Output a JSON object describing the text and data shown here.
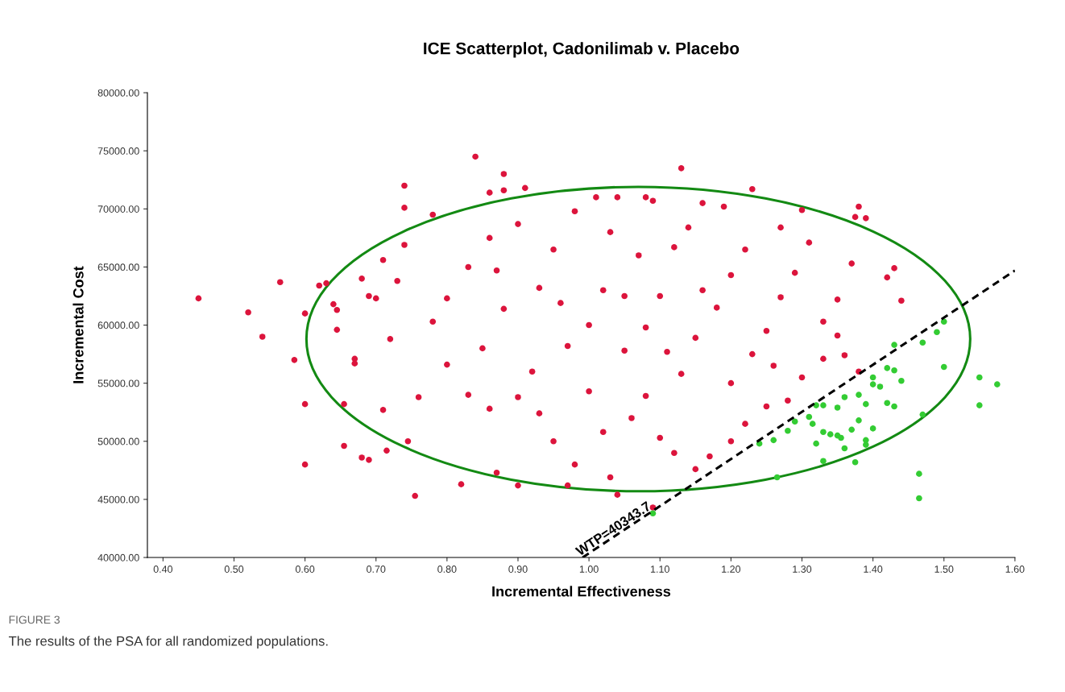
{
  "chart_data": {
    "type": "scatter",
    "title": "ICE Scatterplot, Cadonilimab v. Placebo",
    "xlabel": "Incremental Effectiveness",
    "ylabel": "Incremental Cost",
    "xlim": [
      0.378,
      1.6
    ],
    "ylim": [
      40000,
      80000
    ],
    "xticks": [
      {
        "value": 0.4,
        "label": "0.40"
      },
      {
        "value": 0.5,
        "label": "0.50"
      },
      {
        "value": 0.6,
        "label": "0.60"
      },
      {
        "value": 0.7,
        "label": "0.70"
      },
      {
        "value": 0.8,
        "label": "0.80"
      },
      {
        "value": 0.9,
        "label": "0.90"
      },
      {
        "value": 1.0,
        "label": "1.00"
      },
      {
        "value": 1.1,
        "label": "1.10"
      },
      {
        "value": 1.2,
        "label": "1.20"
      },
      {
        "value": 1.3,
        "label": "1.30"
      },
      {
        "value": 1.4,
        "label": "1.40"
      },
      {
        "value": 1.5,
        "label": "1.50"
      },
      {
        "value": 1.6,
        "label": "1.60"
      }
    ],
    "yticks": [
      {
        "value": 40000,
        "label": "40000.00"
      },
      {
        "value": 45000,
        "label": "45000.00"
      },
      {
        "value": 50000,
        "label": "50000.00"
      },
      {
        "value": 55000,
        "label": "55000.00"
      },
      {
        "value": 60000,
        "label": "60000.00"
      },
      {
        "value": 65000,
        "label": "65000.00"
      },
      {
        "value": 70000,
        "label": "70000.00"
      },
      {
        "value": 75000,
        "label": "75000.00"
      },
      {
        "value": 80000,
        "label": "80000.00"
      }
    ],
    "grid": false,
    "marker": "circle",
    "series": [
      {
        "color": "#dc143c",
        "x": [
          0.45,
          0.52,
          0.54,
          0.565,
          0.585,
          0.6,
          0.6,
          0.6,
          0.62,
          0.63,
          0.64,
          0.645,
          0.645,
          0.655,
          0.655,
          0.67,
          0.67,
          0.68,
          0.68,
          0.69,
          0.69,
          0.7,
          0.71,
          0.71,
          0.715,
          0.72,
          0.73,
          0.74,
          0.74,
          0.74,
          0.745,
          0.755,
          0.76,
          0.78,
          0.82,
          0.84,
          0.86,
          0.88,
          0.88,
          0.91,
          0.98,
          1.01,
          1.04,
          1.08,
          1.09,
          1.13,
          1.16,
          1.19,
          1.23,
          1.3,
          1.375,
          1.38,
          1.39,
          1.42,
          1.43,
          1.44,
          1.04,
          1.09,
          0.97,
          0.9,
          0.87,
          1.03,
          1.35,
          1.36,
          1.38,
          1.33,
          1.3,
          1.28,
          1.25,
          1.22,
          1.2,
          1.17,
          1.15,
          1.12,
          1.1,
          1.06,
          1.02,
          0.98,
          0.95,
          0.93,
          0.9,
          0.86,
          0.83,
          0.8,
          0.78,
          0.8,
          0.83,
          0.86,
          0.9,
          0.93,
          0.95,
          1.0,
          1.02,
          1.05,
          1.08,
          1.1,
          1.13,
          1.15,
          1.18,
          1.2,
          1.22,
          1.25,
          1.27,
          1.29,
          1.31,
          1.33,
          1.35,
          1.37,
          0.85,
          0.88,
          0.92,
          0.97,
          1.0,
          1.05,
          1.08,
          1.12,
          1.16,
          1.2,
          1.23,
          1.26,
          1.03,
          1.07,
          1.14,
          1.27,
          0.96,
          1.11,
          0.87
        ],
        "values": [
          62300,
          61100,
          59000,
          63700,
          57000,
          61000,
          53200,
          48000,
          63400,
          63600,
          61800,
          61300,
          59600,
          53200,
          49600,
          56700,
          57100,
          64000,
          48600,
          48400,
          62500,
          62300,
          65600,
          52700,
          49200,
          58800,
          63800,
          66900,
          70100,
          72000,
          50000,
          45300,
          53800,
          69500,
          46300,
          74500,
          71400,
          73000,
          71600,
          71800,
          69800,
          71000,
          71000,
          71000,
          70700,
          73500,
          70500,
          70200,
          71700,
          69900,
          69300,
          70200,
          69200,
          64100,
          64900,
          62100,
          45400,
          44300,
          46200,
          46200,
          47300,
          46900,
          59100,
          57400,
          56000,
          57100,
          55500,
          53500,
          53000,
          51500,
          50000,
          48700,
          47600,
          49000,
          50300,
          52000,
          50800,
          48000,
          50000,
          52400,
          53800,
          52800,
          54000,
          56600,
          60300,
          62300,
          65000,
          67500,
          68700,
          63200,
          66500,
          60000,
          63000,
          57800,
          59800,
          62500,
          55800,
          58900,
          61500,
          64300,
          66500,
          59500,
          62400,
          64500,
          67100,
          60300,
          62200,
          65300,
          58000,
          61400,
          56000,
          58200,
          54300,
          62500,
          53900,
          66700,
          63000,
          55000,
          57500,
          56500,
          68000,
          66000,
          68400,
          68400,
          61900,
          57700,
          64700
        ]
      },
      {
        "color": "#33cc33",
        "x": [
          1.5,
          1.49,
          1.43,
          1.47,
          1.42,
          1.43,
          1.44,
          1.4,
          1.4,
          1.41,
          1.5,
          1.55,
          1.575,
          1.55,
          1.47,
          1.38,
          1.39,
          1.36,
          1.35,
          1.42,
          1.43,
          1.32,
          1.33,
          1.31,
          1.315,
          1.29,
          1.28,
          1.33,
          1.34,
          1.35,
          1.355,
          1.32,
          1.26,
          1.24,
          1.37,
          1.38,
          1.4,
          1.39,
          1.36,
          1.33,
          1.375,
          1.265,
          1.465,
          1.465,
          1.09,
          1.39
        ],
        "values": [
          60300,
          59400,
          58300,
          58500,
          56300,
          56100,
          55200,
          55500,
          54900,
          54700,
          56400,
          55500,
          54900,
          53100,
          52300,
          54000,
          53200,
          53800,
          52900,
          53300,
          53000,
          53100,
          53100,
          52100,
          51500,
          51700,
          50900,
          50800,
          50600,
          50500,
          50300,
          49800,
          50100,
          49800,
          51000,
          51800,
          51100,
          49700,
          49400,
          48300,
          48200,
          46900,
          47200,
          45100,
          43800,
          50100
        ]
      },
      {
        "type": "line",
        "color": "#000000",
        "line_style": "dashed",
        "marker": "none",
        "x": [
          0.991,
          1.6
        ],
        "values": [
          40000,
          64700
        ]
      }
    ],
    "annotations": [
      {
        "text": "WTP=40343.7",
        "x": 1.04,
        "y": 41960
      },
      "FIGURE 3",
      "The results of the PSA for all randomized populations."
    ]
  }
}
